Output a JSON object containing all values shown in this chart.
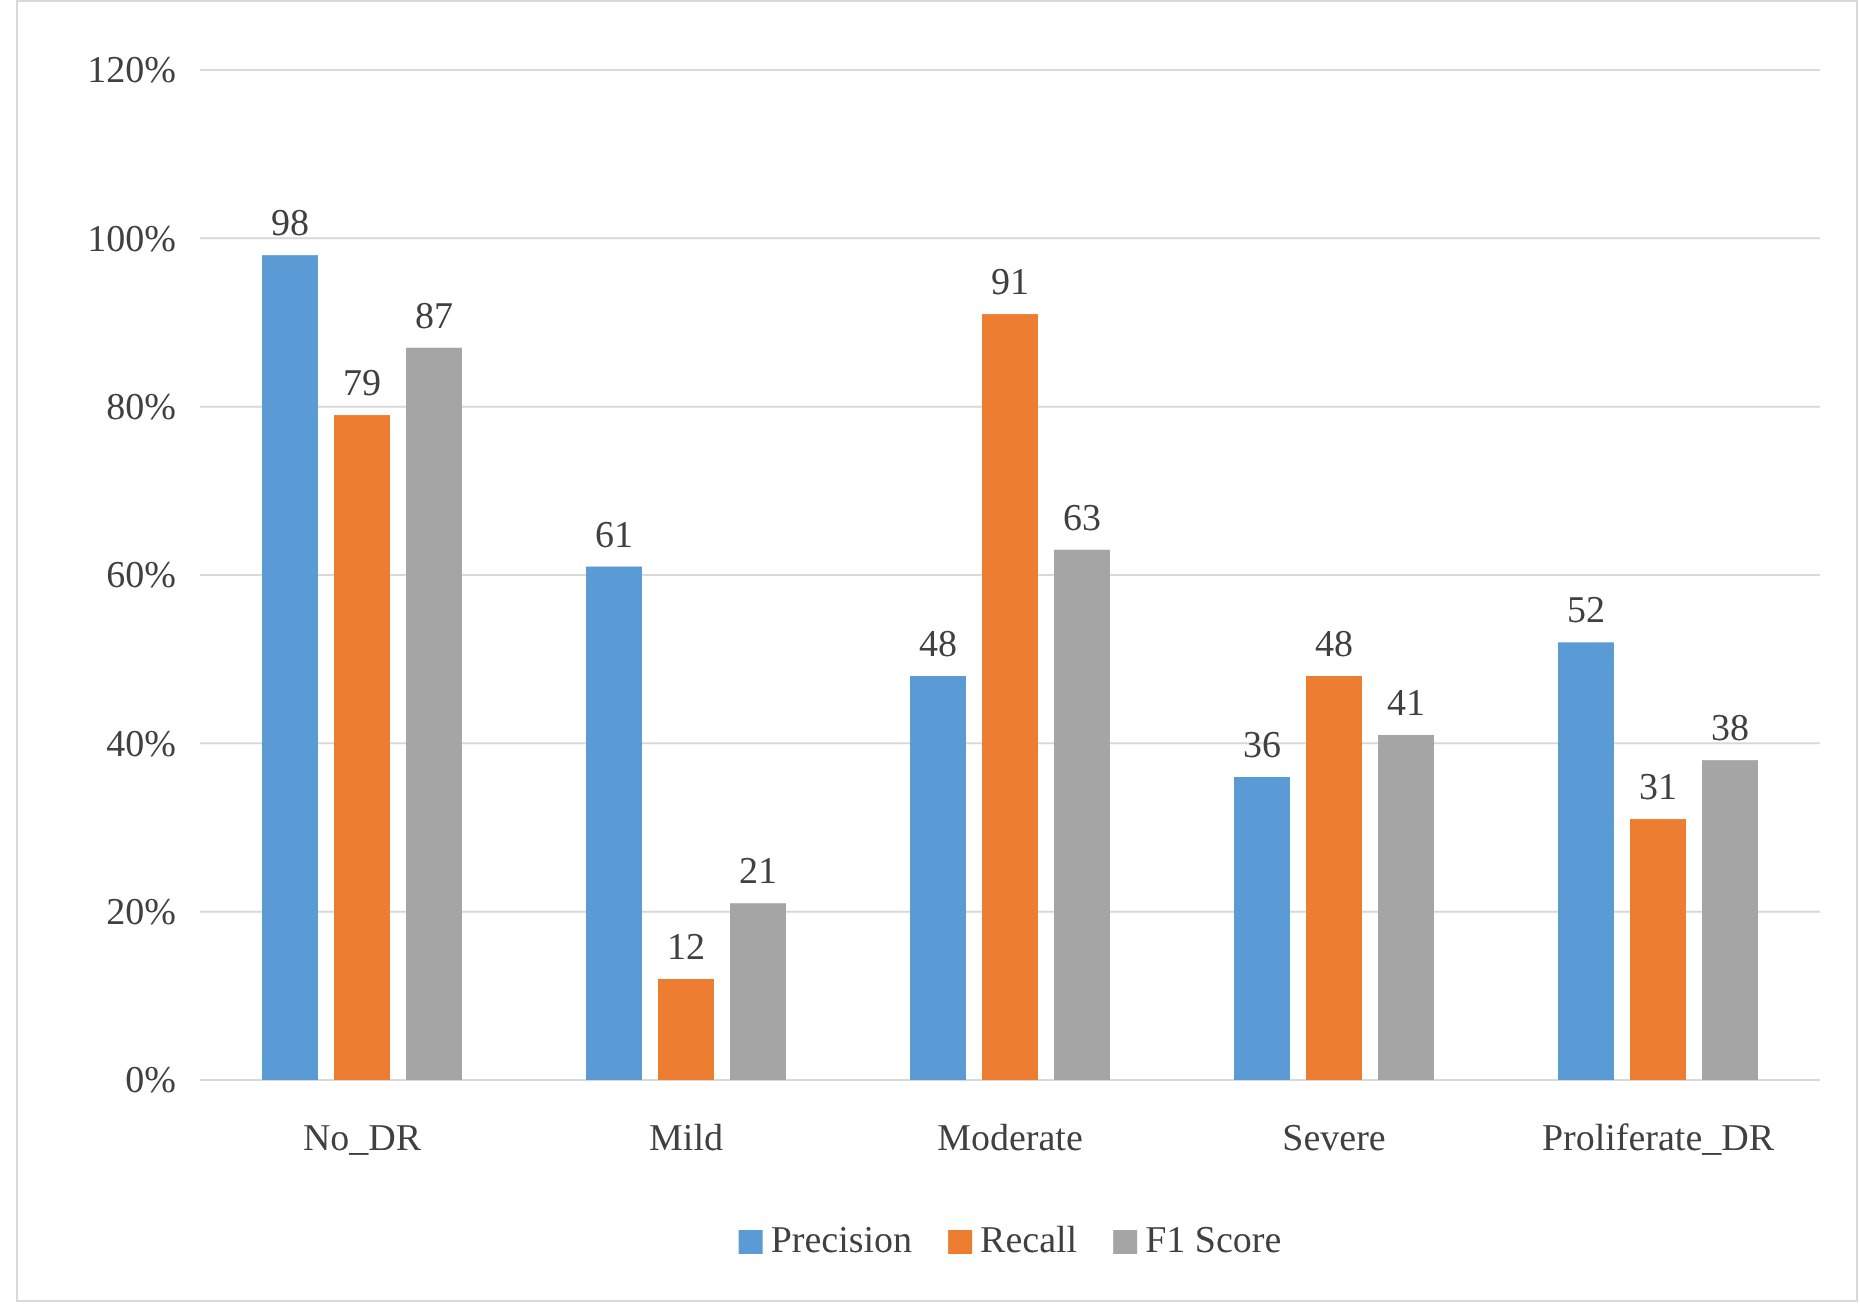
{
  "chart_data": {
    "type": "bar",
    "categories": [
      "No_DR",
      "Mild",
      "Moderate",
      "Severe",
      "Proliferate_DR"
    ],
    "series": [
      {
        "name": "Precision",
        "color": "#5b9bd5",
        "values": [
          98,
          61,
          48,
          36,
          52
        ]
      },
      {
        "name": "Recall",
        "color": "#ed7d31",
        "values": [
          79,
          12,
          91,
          48,
          31
        ]
      },
      {
        "name": "F1 Score",
        "color": "#a5a5a5",
        "values": [
          87,
          21,
          63,
          41,
          38
        ]
      }
    ],
    "ylim": [
      0,
      120
    ],
    "yticks": [
      {
        "value": 0,
        "label": "0%"
      },
      {
        "value": 20,
        "label": "20%"
      },
      {
        "value": 40,
        "label": "40%"
      },
      {
        "value": 60,
        "label": "60%"
      },
      {
        "value": 80,
        "label": "80%"
      },
      {
        "value": 100,
        "label": "100%"
      },
      {
        "value": 120,
        "label": "120%"
      }
    ],
    "grid": "y",
    "legend": "bottom",
    "data_labels": true
  }
}
